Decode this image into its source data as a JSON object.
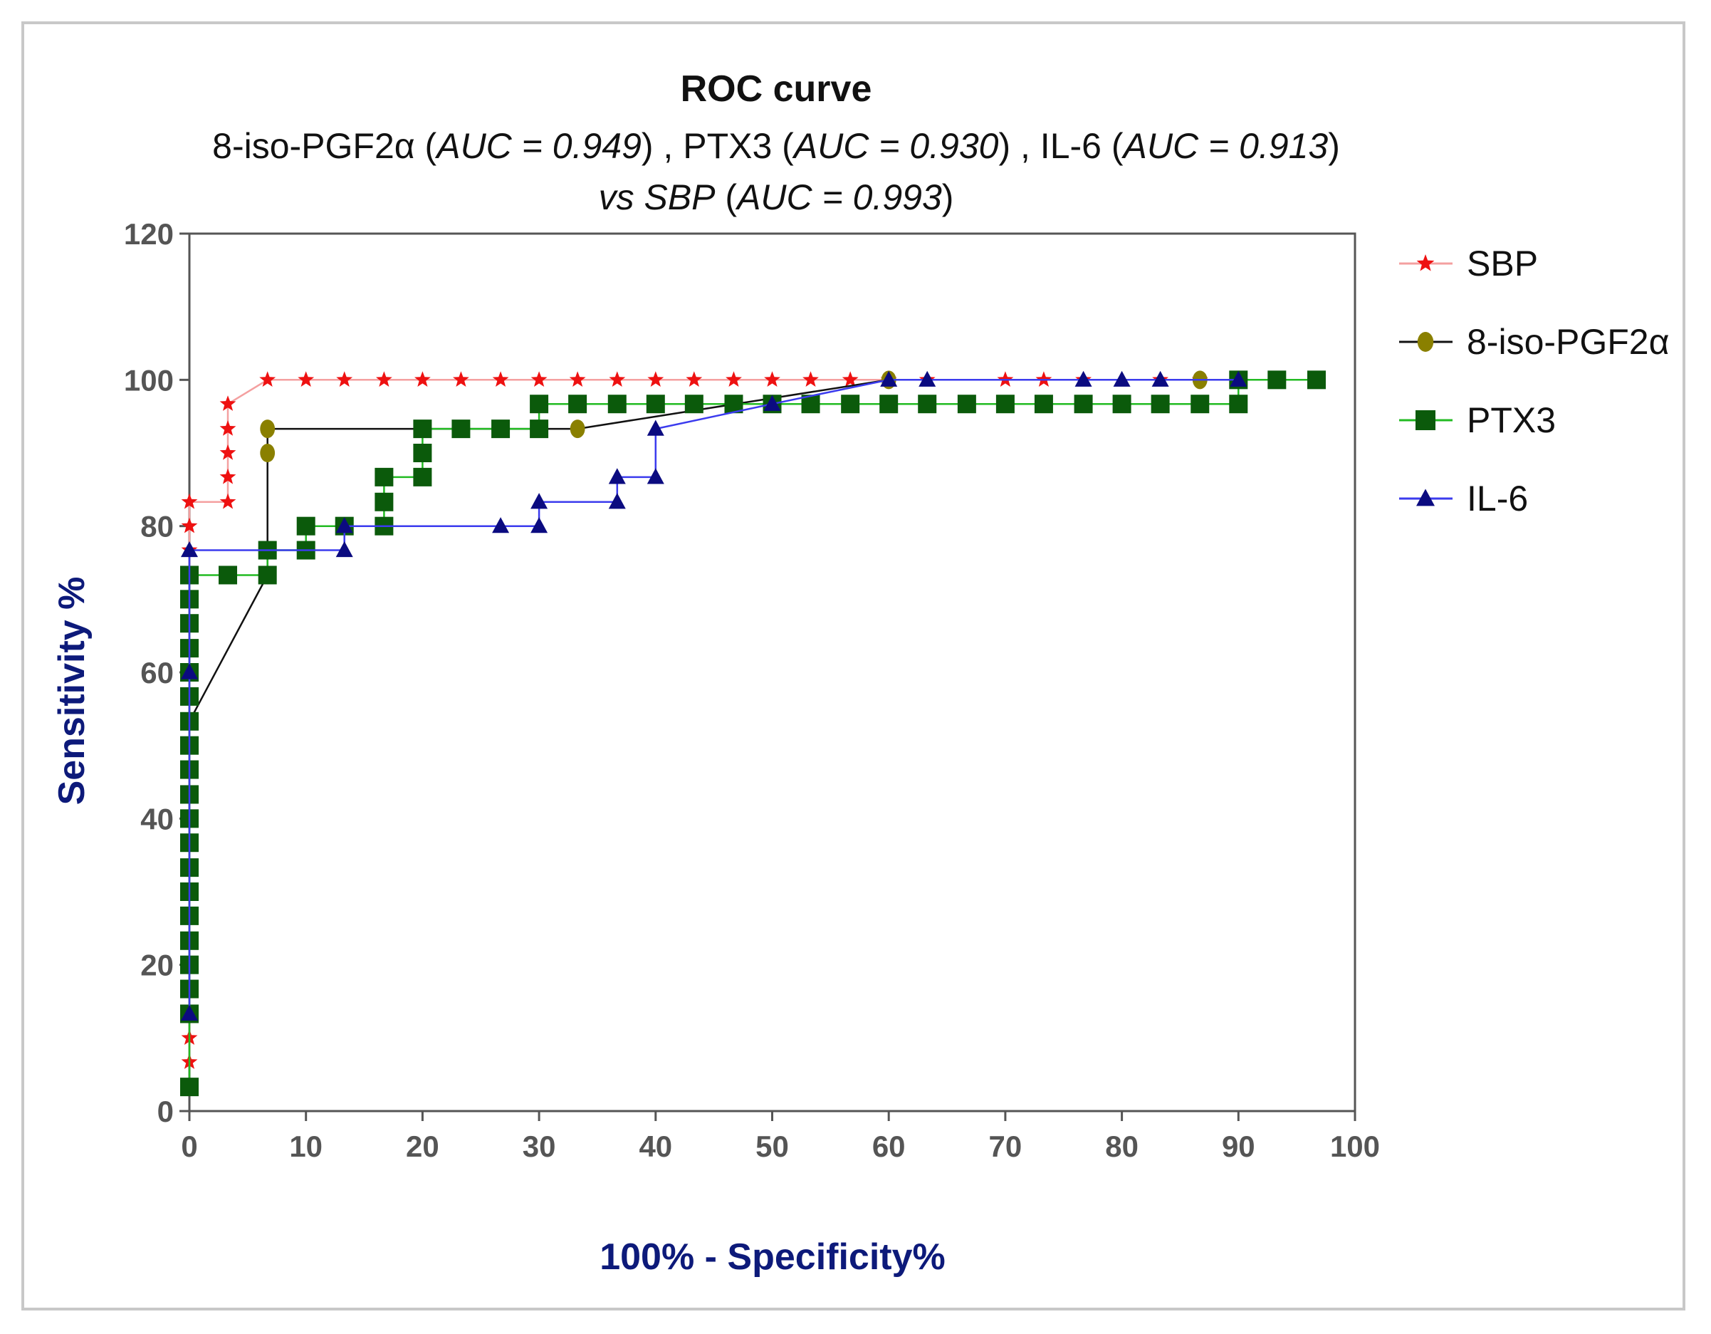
{
  "chart_data": {
    "type": "line",
    "title": "ROC curve",
    "subtitle": {
      "line1": [
        {
          "text": "8-iso-PGF2α (",
          "italic": false
        },
        {
          "text": "AUC = 0.949",
          "italic": true
        },
        {
          "text": ") , PTX3 (",
          "italic": false
        },
        {
          "text": "AUC = 0.930",
          "italic": true
        },
        {
          "text": ") , IL-6 (",
          "italic": false
        },
        {
          "text": "AUC = 0.913",
          "italic": true
        },
        {
          "text": ")",
          "italic": false
        }
      ],
      "line2": [
        {
          "text": "vs SBP",
          "italic": true
        },
        {
          "text": " (",
          "italic": false
        },
        {
          "text": "AUC = 0.993",
          "italic": true
        },
        {
          "text": ")",
          "italic": false
        }
      ]
    },
    "xlabel": "100% - Specificity%",
    "ylabel": "Sensitivity %",
    "xlim": [
      0,
      100
    ],
    "ylim": [
      0,
      120
    ],
    "xticks": [
      0,
      10,
      20,
      30,
      40,
      50,
      60,
      70,
      80,
      90,
      100
    ],
    "yticks": [
      0,
      20,
      40,
      60,
      80,
      100,
      120
    ],
    "legend_position": "right",
    "series": [
      {
        "name": "SBP",
        "line_color": "#f4a0a0",
        "marker_color": "#ee1111",
        "marker": "star",
        "points": [
          [
            0,
            6.7
          ],
          [
            0,
            10
          ],
          [
            0,
            13.3
          ],
          [
            0,
            16.7
          ],
          [
            0,
            20
          ],
          [
            0,
            23.3
          ],
          [
            0,
            26.7
          ],
          [
            0,
            30
          ],
          [
            0,
            33.3
          ],
          [
            0,
            36.7
          ],
          [
            0,
            40
          ],
          [
            0,
            43.3
          ],
          [
            0,
            46.7
          ],
          [
            0,
            50
          ],
          [
            0,
            53.3
          ],
          [
            0,
            56.7
          ],
          [
            0,
            60
          ],
          [
            0,
            63.3
          ],
          [
            0,
            66.7
          ],
          [
            0,
            70
          ],
          [
            0,
            73.3
          ],
          [
            0,
            76.7
          ],
          [
            0,
            80
          ],
          [
            0,
            83.3
          ],
          [
            3.3,
            83.3
          ],
          [
            3.3,
            86.7
          ],
          [
            3.3,
            90
          ],
          [
            3.3,
            93.3
          ],
          [
            3.3,
            96.7
          ],
          [
            6.7,
            100
          ],
          [
            10,
            100
          ],
          [
            13.3,
            100
          ],
          [
            16.7,
            100
          ],
          [
            20,
            100
          ],
          [
            23.3,
            100
          ],
          [
            26.7,
            100
          ],
          [
            30,
            100
          ],
          [
            33.3,
            100
          ],
          [
            36.7,
            100
          ],
          [
            40,
            100
          ],
          [
            43.3,
            100
          ],
          [
            46.7,
            100
          ],
          [
            50,
            100
          ],
          [
            53.3,
            100
          ],
          [
            56.7,
            100
          ],
          [
            60,
            100
          ],
          [
            63.3,
            100
          ],
          [
            70,
            100
          ],
          [
            73.3,
            100
          ],
          [
            76.7,
            100
          ],
          [
            83.3,
            100
          ],
          [
            86.7,
            100
          ],
          [
            90,
            100
          ],
          [
            93.3,
            100
          ],
          [
            96.7,
            100
          ]
        ]
      },
      {
        "name": "8-iso-PGF2α",
        "line_color": "#111111",
        "marker_color": "#8a8000",
        "marker": "circle",
        "points": [
          [
            0,
            53.3
          ],
          [
            6.7,
            73.3
          ],
          [
            6.7,
            90
          ],
          [
            6.7,
            93.3
          ],
          [
            33.3,
            93.3
          ],
          [
            60,
            100
          ],
          [
            86.7,
            100
          ]
        ]
      },
      {
        "name": "PTX3",
        "line_color": "#22bb22",
        "marker_color": "#0b5a0b",
        "marker": "square",
        "points": [
          [
            0,
            3.3
          ],
          [
            0,
            13.3
          ],
          [
            0,
            16.7
          ],
          [
            0,
            20
          ],
          [
            0,
            23.3
          ],
          [
            0,
            26.7
          ],
          [
            0,
            30
          ],
          [
            0,
            33.3
          ],
          [
            0,
            36.7
          ],
          [
            0,
            40
          ],
          [
            0,
            43.3
          ],
          [
            0,
            46.7
          ],
          [
            0,
            50
          ],
          [
            0,
            53.3
          ],
          [
            0,
            56.7
          ],
          [
            0,
            60
          ],
          [
            0,
            63.3
          ],
          [
            0,
            66.7
          ],
          [
            0,
            70
          ],
          [
            0,
            73.3
          ],
          [
            3.3,
            73.3
          ],
          [
            6.7,
            73.3
          ],
          [
            6.7,
            76.7
          ],
          [
            10,
            76.7
          ],
          [
            10,
            80
          ],
          [
            13.3,
            80
          ],
          [
            16.7,
            80
          ],
          [
            16.7,
            83.3
          ],
          [
            16.7,
            86.7
          ],
          [
            20,
            86.7
          ],
          [
            20,
            90
          ],
          [
            20,
            93.3
          ],
          [
            23.3,
            93.3
          ],
          [
            26.7,
            93.3
          ],
          [
            30,
            93.3
          ],
          [
            30,
            96.7
          ],
          [
            33.3,
            96.7
          ],
          [
            36.7,
            96.7
          ],
          [
            40,
            96.7
          ],
          [
            43.3,
            96.7
          ],
          [
            46.7,
            96.7
          ],
          [
            50,
            96.7
          ],
          [
            53.3,
            96.7
          ],
          [
            56.7,
            96.7
          ],
          [
            60,
            96.7
          ],
          [
            63.3,
            96.7
          ],
          [
            66.7,
            96.7
          ],
          [
            70,
            96.7
          ],
          [
            73.3,
            96.7
          ],
          [
            76.7,
            96.7
          ],
          [
            80,
            96.7
          ],
          [
            83.3,
            96.7
          ],
          [
            86.7,
            96.7
          ],
          [
            90,
            96.7
          ],
          [
            90,
            100
          ],
          [
            93.3,
            100
          ],
          [
            96.7,
            100
          ]
        ]
      },
      {
        "name": "IL-6",
        "line_color": "#3b3bee",
        "marker_color": "#0b0b80",
        "marker": "triangle",
        "points": [
          [
            0,
            13.3
          ],
          [
            0,
            60
          ],
          [
            0,
            76.7
          ],
          [
            13.3,
            76.7
          ],
          [
            13.3,
            80
          ],
          [
            26.7,
            80
          ],
          [
            30,
            80
          ],
          [
            30,
            83.3
          ],
          [
            36.7,
            83.3
          ],
          [
            36.7,
            86.7
          ],
          [
            40,
            86.7
          ],
          [
            40,
            93.3
          ],
          [
            50,
            96.7
          ],
          [
            60,
            100
          ],
          [
            63.3,
            100
          ],
          [
            76.7,
            100
          ],
          [
            80,
            100
          ],
          [
            83.3,
            100
          ],
          [
            90,
            100
          ]
        ]
      }
    ]
  }
}
